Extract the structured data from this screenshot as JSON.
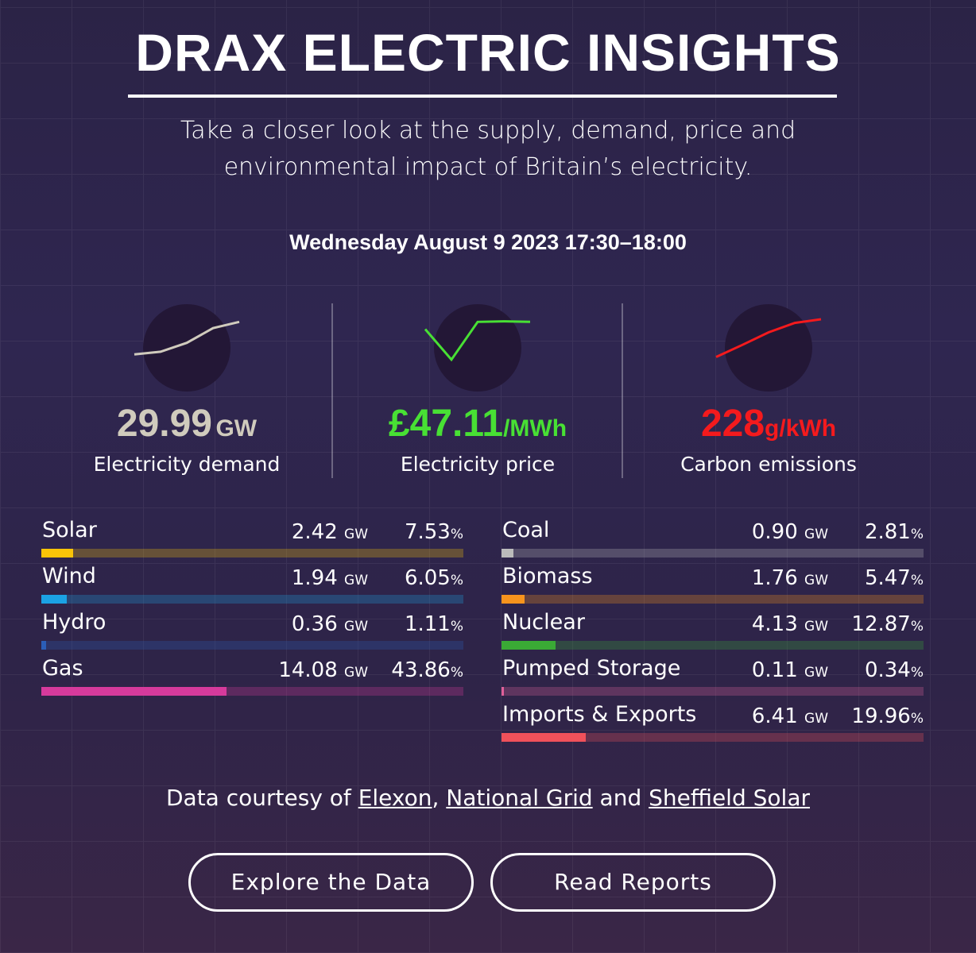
{
  "header": {
    "title": "DRAX ELECTRIC INSIGHTS",
    "subtitle": "Take a closer look at the supply, demand, price and environmental impact of Britain’s electricity.",
    "datetime": "Wednesday August 9 2023 17:30–18:00"
  },
  "kpis": {
    "demand": {
      "value": "29.99",
      "unit": "GW",
      "label": "Electricity demand",
      "color": "#d0cbbd",
      "sparkline": [
        0.3,
        0.35,
        0.52,
        0.8,
        0.92
      ]
    },
    "price": {
      "value": "£47.11",
      "unit": "/MWh",
      "label": "Electricity price",
      "color": "#48e034",
      "sparkline": [
        0.78,
        0.2,
        0.92,
        0.93,
        0.92
      ]
    },
    "carbon": {
      "value": "228",
      "unit": "g/kWh",
      "label": "Carbon emissions",
      "color": "#f41a1d",
      "sparkline": [
        0.25,
        0.48,
        0.72,
        0.9,
        0.97
      ]
    }
  },
  "sources": {
    "left": [
      {
        "name": "Solar",
        "gw": "2.42",
        "gw_unit": "GW",
        "pct": "7.53",
        "pct_unit": "%",
        "share": 0.0753,
        "color": "#f9c408"
      },
      {
        "name": "Wind",
        "gw": "1.94",
        "gw_unit": "GW",
        "pct": "6.05",
        "pct_unit": "%",
        "share": 0.0605,
        "color": "#1ba2e4"
      },
      {
        "name": "Hydro",
        "gw": "0.36",
        "gw_unit": "GW",
        "pct": "1.11",
        "pct_unit": "%",
        "share": 0.0111,
        "color": "#2b5eb8"
      },
      {
        "name": "Gas",
        "gw": "14.08",
        "gw_unit": "GW",
        "pct": "43.86",
        "pct_unit": "%",
        "share": 0.4386,
        "color": "#d63a9c"
      }
    ],
    "right": [
      {
        "name": "Coal",
        "gw": "0.90",
        "gw_unit": "GW",
        "pct": "2.81",
        "pct_unit": "%",
        "share": 0.0281,
        "color": "#bbbbbb"
      },
      {
        "name": "Biomass",
        "gw": "1.76",
        "gw_unit": "GW",
        "pct": "5.47",
        "pct_unit": "%",
        "share": 0.0547,
        "color": "#f7941d"
      },
      {
        "name": "Nuclear",
        "gw": "4.13",
        "gw_unit": "GW",
        "pct": "12.87",
        "pct_unit": "%",
        "share": 0.1287,
        "color": "#3aaa35"
      },
      {
        "name": "Pumped Storage",
        "gw": "0.11",
        "gw_unit": "GW",
        "pct": "0.34",
        "pct_unit": "%",
        "share": 0.0034,
        "color": "#e0609a"
      },
      {
        "name": "Imports & Exports",
        "gw": "6.41",
        "gw_unit": "GW",
        "pct": "19.96",
        "pct_unit": "%",
        "share": 0.1996,
        "color": "#f0515a"
      }
    ]
  },
  "credit": {
    "prefix": "Data courtesy of",
    "link1": "Elexon",
    "sep": ",",
    "link2": "National Grid",
    "and": "and",
    "link3": "Sheffield Solar"
  },
  "buttons": {
    "explore": "Explore the Data",
    "reports": "Read Reports"
  }
}
